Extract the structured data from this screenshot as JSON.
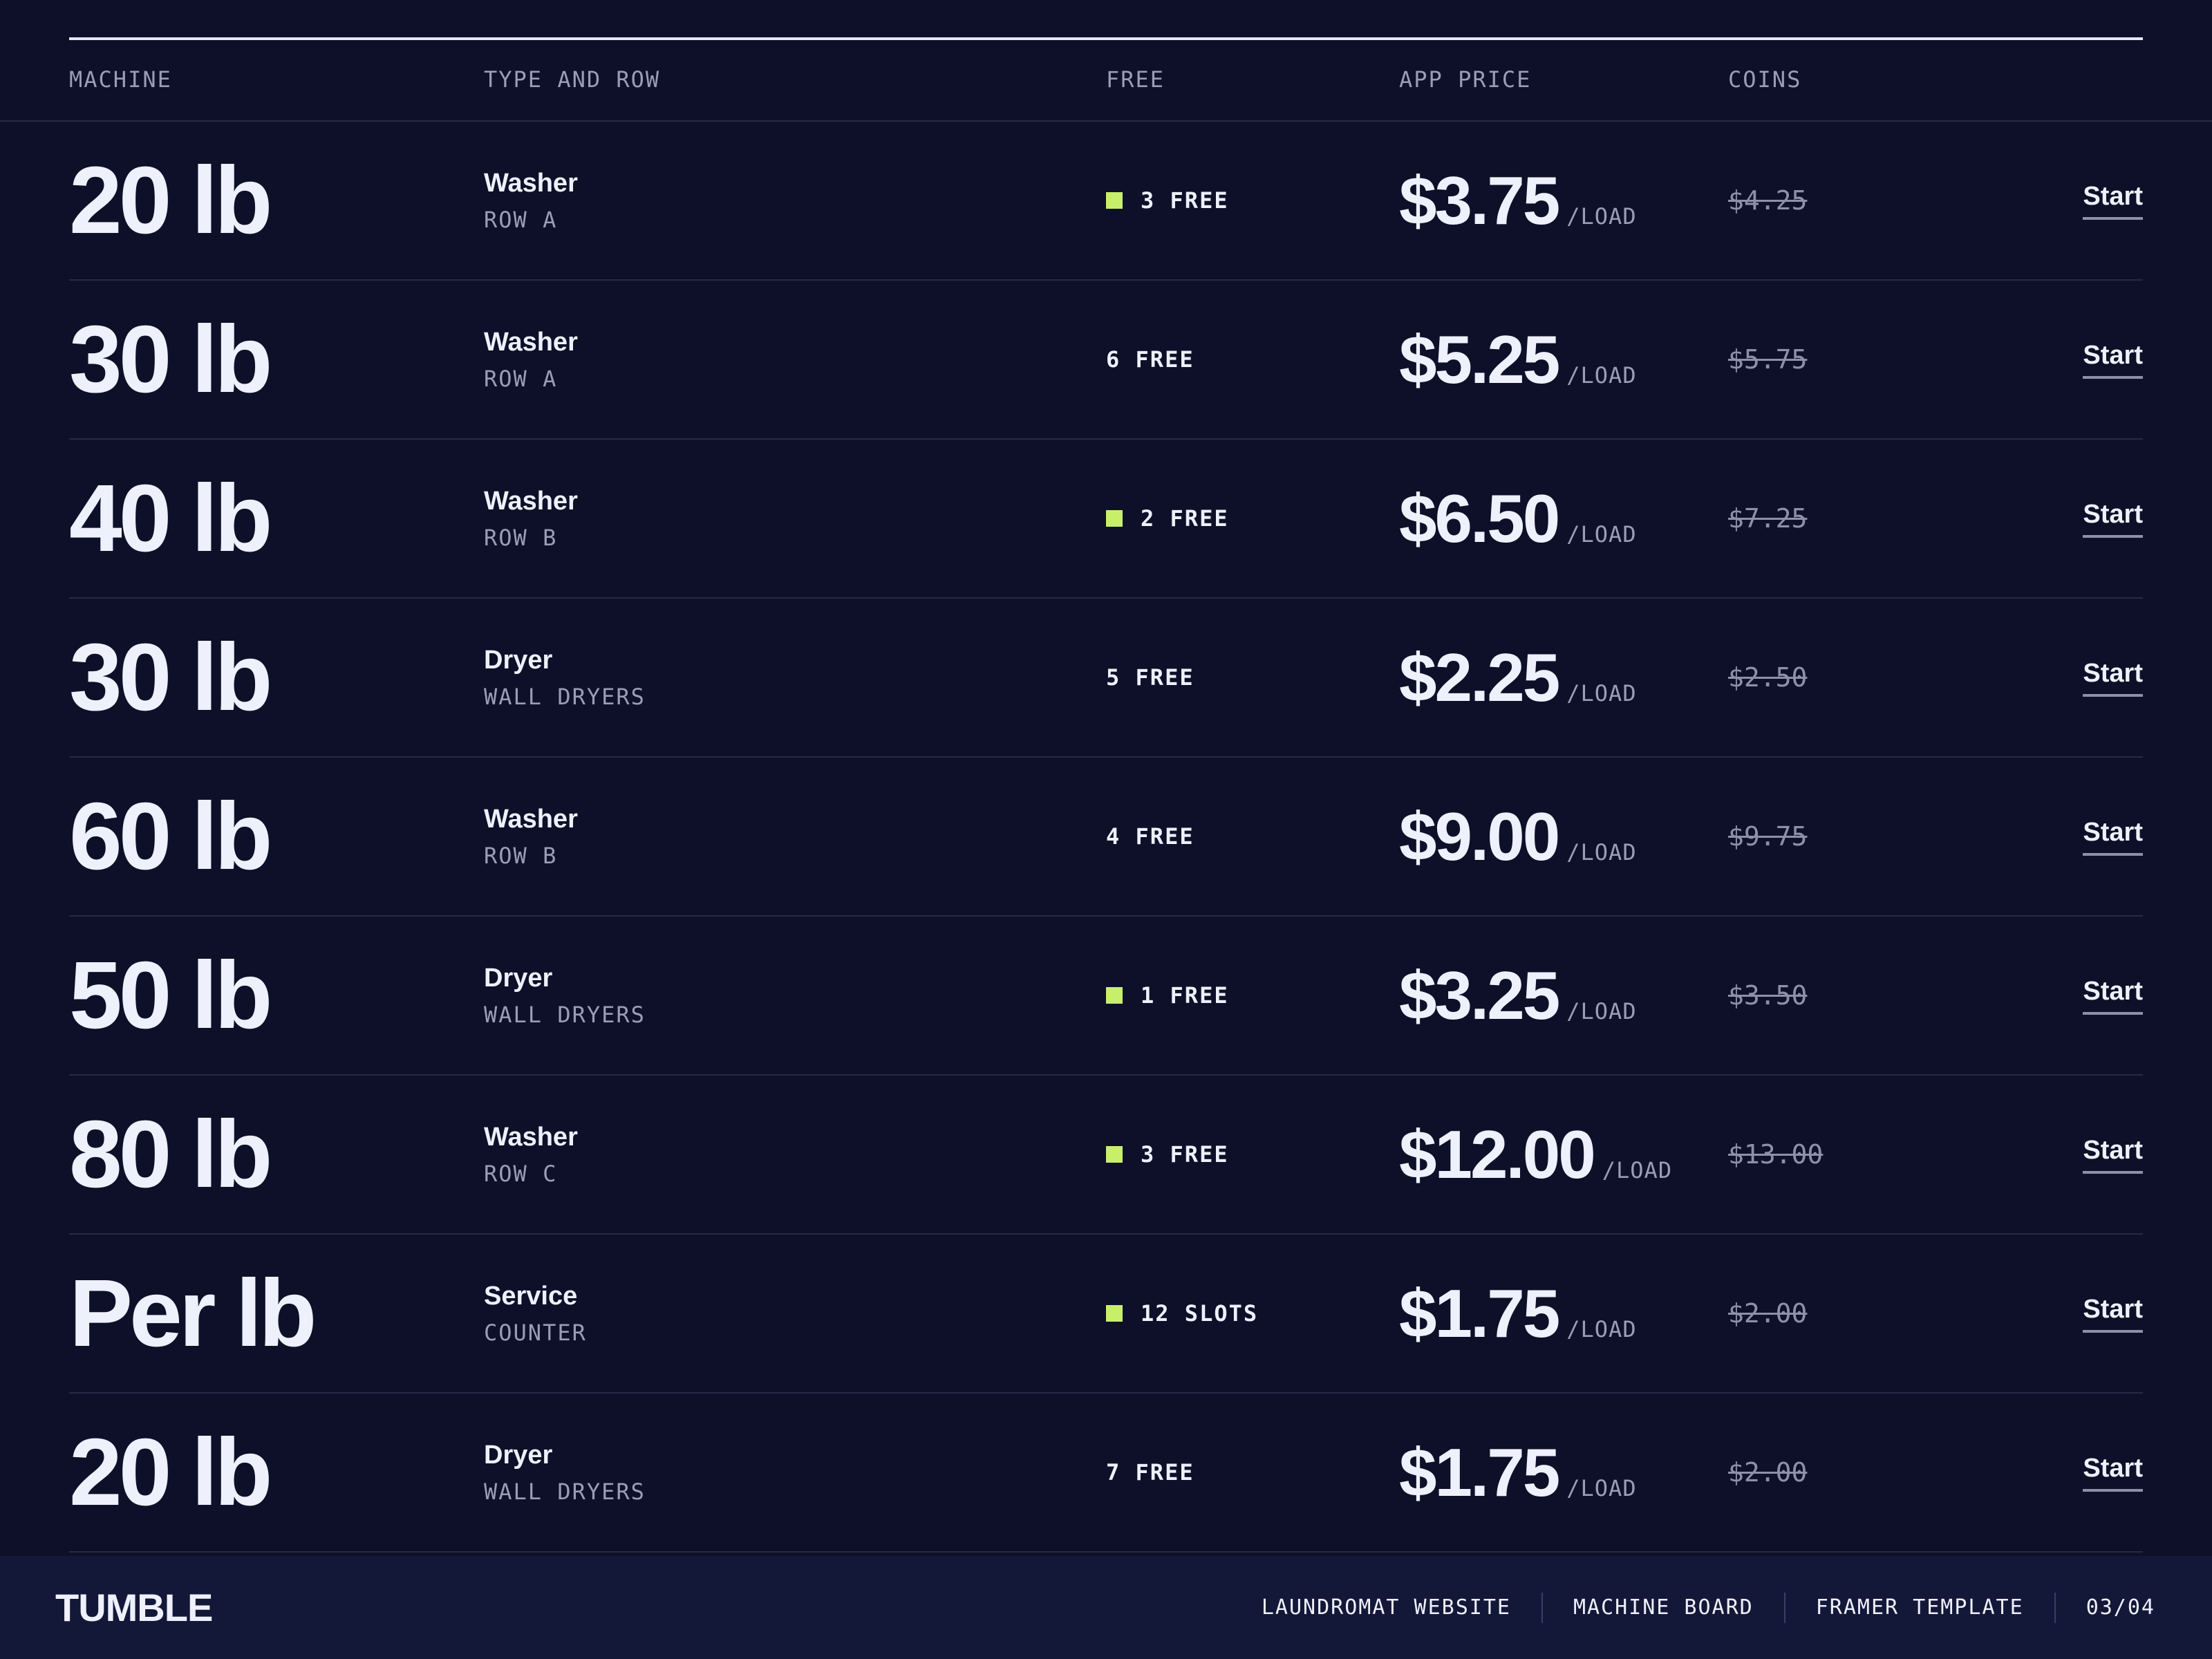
{
  "header": {
    "columns": [
      "MACHINE",
      "TYPE AND ROW",
      "FREE",
      "APP PRICE",
      "COINS"
    ]
  },
  "rows": [
    {
      "machine": "20 lb",
      "type": "Washer",
      "location": "ROW A",
      "free": "3 FREE",
      "indicator": true,
      "price": "$3.75",
      "unit": "/LOAD",
      "coins": "$4.25",
      "action": "Start"
    },
    {
      "machine": "30 lb",
      "type": "Washer",
      "location": "ROW A",
      "free": "6 FREE",
      "indicator": false,
      "price": "$5.25",
      "unit": "/LOAD",
      "coins": "$5.75",
      "action": "Start"
    },
    {
      "machine": "40 lb",
      "type": "Washer",
      "location": "ROW B",
      "free": "2 FREE",
      "indicator": true,
      "price": "$6.50",
      "unit": "/LOAD",
      "coins": "$7.25",
      "action": "Start"
    },
    {
      "machine": "30 lb",
      "type": "Dryer",
      "location": "WALL DRYERS",
      "free": "5 FREE",
      "indicator": false,
      "price": "$2.25",
      "unit": "/LOAD",
      "coins": "$2.50",
      "action": "Start"
    },
    {
      "machine": "60 lb",
      "type": "Washer",
      "location": "ROW B",
      "free": "4 FREE",
      "indicator": false,
      "price": "$9.00",
      "unit": "/LOAD",
      "coins": "$9.75",
      "action": "Start"
    },
    {
      "machine": "50 lb",
      "type": "Dryer",
      "location": "WALL DRYERS",
      "free": "1 FREE",
      "indicator": true,
      "price": "$3.25",
      "unit": "/LOAD",
      "coins": "$3.50",
      "action": "Start"
    },
    {
      "machine": "80 lb",
      "type": "Washer",
      "location": "ROW C",
      "free": "3 FREE",
      "indicator": true,
      "price": "$12.00",
      "unit": "/LOAD",
      "coins": "$13.00",
      "action": "Start"
    },
    {
      "machine": "Per lb",
      "type": "Service",
      "location": "COUNTER",
      "free": "12 SLOTS",
      "indicator": true,
      "price": "$1.75",
      "unit": "/LOAD",
      "coins": "$2.00",
      "action": "Start"
    },
    {
      "machine": "20 lb",
      "type": "Dryer",
      "location": "WALL DRYERS",
      "free": "7 FREE",
      "indicator": false,
      "price": "$1.75",
      "unit": "/LOAD",
      "coins": "$2.00",
      "action": "Start"
    }
  ],
  "footer": {
    "brand": "TUMBLE",
    "links": [
      "LAUNDROMAT WEBSITE",
      "MACHINE BOARD",
      "FRAMER TEMPLATE",
      "03/04"
    ]
  }
}
